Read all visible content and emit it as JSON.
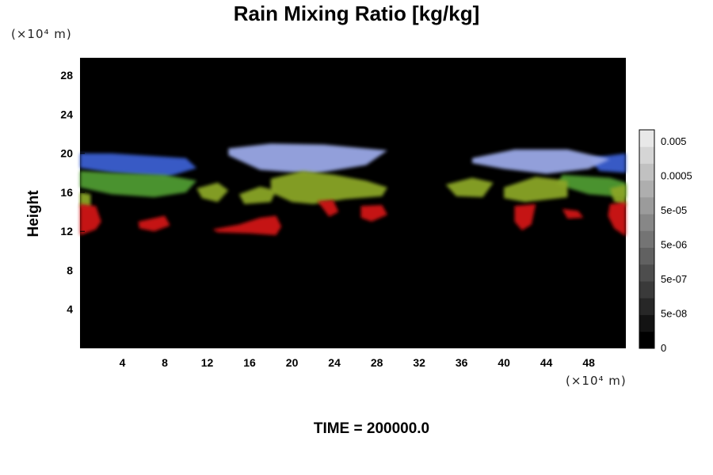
{
  "chart_data": {
    "type": "heatmap",
    "title": "Rain Mixing Ratio [kg/kg]",
    "ylabel": "Height",
    "xlabel": "",
    "x_unit": "(×10⁴ m)",
    "y_unit": "(×10⁴ m)",
    "xlim": [
      0,
      51.5
    ],
    "ylim": [
      0,
      29.8
    ],
    "x_ticks": [
      4,
      8,
      12,
      16,
      20,
      24,
      28,
      32,
      36,
      40,
      44,
      48
    ],
    "y_ticks": [
      4,
      8,
      12,
      16,
      20,
      24,
      28
    ],
    "colorbar": {
      "labels": [
        "0.005",
        "0.0005",
        "5e-05",
        "5e-06",
        "5e-07",
        "5e-08",
        "0"
      ],
      "levels": 13
    },
    "regions": [
      {
        "level": "blue",
        "color": "#3a5fd0",
        "shape": [
          [
            0,
            20
          ],
          [
            3,
            20
          ],
          [
            10,
            19.5
          ],
          [
            11,
            18.5
          ],
          [
            8,
            17.5
          ],
          [
            3,
            18
          ],
          [
            0,
            18.5
          ]
        ]
      },
      {
        "level": "blue",
        "color": "#3a5fd0",
        "shape": [
          [
            48,
            19.5
          ],
          [
            51.5,
            20
          ],
          [
            51.5,
            18
          ],
          [
            49,
            18.2
          ]
        ]
      },
      {
        "level": "light",
        "color": "#9aa8e6",
        "shape": [
          [
            14,
            20.5
          ],
          [
            18,
            21
          ],
          [
            23,
            20.9
          ],
          [
            29,
            20.3
          ],
          [
            27,
            18.8
          ],
          [
            22,
            17.9
          ],
          [
            17,
            18.3
          ],
          [
            14,
            19.8
          ]
        ]
      },
      {
        "level": "light",
        "color": "#9aa8e6",
        "shape": [
          [
            37,
            19.5
          ],
          [
            41,
            20.4
          ],
          [
            46,
            20.4
          ],
          [
            50,
            19.4
          ],
          [
            48,
            18.4
          ],
          [
            44,
            17.9
          ],
          [
            40,
            18.4
          ],
          [
            37,
            19
          ]
        ]
      },
      {
        "level": "green",
        "color": "#4f9a30",
        "shape": [
          [
            0,
            18.2
          ],
          [
            3,
            18
          ],
          [
            8,
            17.8
          ],
          [
            11,
            17.2
          ],
          [
            10,
            16
          ],
          [
            7,
            15.5
          ],
          [
            3,
            15.8
          ],
          [
            0,
            16.5
          ]
        ]
      },
      {
        "level": "green",
        "color": "#4f9a30",
        "shape": [
          [
            45.5,
            17.8
          ],
          [
            50,
            17.5
          ],
          [
            51.5,
            17
          ],
          [
            51.5,
            15.5
          ],
          [
            48,
            15.8
          ],
          [
            45,
            16.8
          ]
        ]
      },
      {
        "level": "yellow",
        "color": "#8aa528",
        "shape": [
          [
            0,
            16
          ],
          [
            1,
            15.8
          ],
          [
            1,
            14.4
          ],
          [
            0,
            14.6
          ]
        ]
      },
      {
        "level": "yellow",
        "color": "#8aa528",
        "shape": [
          [
            11,
            16.4
          ],
          [
            13,
            17
          ],
          [
            14,
            16.2
          ],
          [
            13,
            15
          ],
          [
            11.5,
            15.4
          ]
        ]
      },
      {
        "level": "yellow",
        "color": "#8aa528",
        "shape": [
          [
            15,
            15.8
          ],
          [
            17,
            16.6
          ],
          [
            18.5,
            16.2
          ],
          [
            18,
            15
          ],
          [
            15.5,
            14.8
          ]
        ]
      },
      {
        "level": "yellow",
        "color": "#8aa528",
        "shape": [
          [
            18,
            17.4
          ],
          [
            21,
            18.2
          ],
          [
            24,
            17.8
          ],
          [
            27,
            17.2
          ],
          [
            29,
            16.5
          ],
          [
            28.5,
            15.6
          ],
          [
            25,
            15.3
          ],
          [
            22,
            14.8
          ],
          [
            20,
            15
          ],
          [
            18,
            16
          ]
        ]
      },
      {
        "level": "yellow",
        "color": "#8aa528",
        "shape": [
          [
            34.5,
            16.8
          ],
          [
            37,
            17.5
          ],
          [
            39,
            17
          ],
          [
            38,
            15.5
          ],
          [
            35.5,
            15.6
          ]
        ]
      },
      {
        "level": "yellow",
        "color": "#8aa528",
        "shape": [
          [
            40,
            16.5
          ],
          [
            43,
            17.6
          ],
          [
            46,
            17.2
          ],
          [
            46,
            15.5
          ],
          [
            42,
            15
          ],
          [
            40,
            15.4
          ]
        ]
      },
      {
        "level": "yellow",
        "color": "#8aa528",
        "shape": [
          [
            50,
            16.4
          ],
          [
            51.5,
            16.8
          ],
          [
            51.5,
            14.6
          ],
          [
            50.4,
            15
          ]
        ]
      },
      {
        "level": "red",
        "color": "#d01818",
        "shape": [
          [
            0,
            14.8
          ],
          [
            1.5,
            14.6
          ],
          [
            2,
            13
          ],
          [
            1.5,
            12.2
          ],
          [
            0,
            11.6
          ]
        ]
      },
      {
        "level": "red",
        "color": "#d01818",
        "shape": [
          [
            5.5,
            13
          ],
          [
            8,
            13.6
          ],
          [
            8.5,
            12.6
          ],
          [
            7,
            12
          ],
          [
            5.6,
            12.3
          ]
        ]
      },
      {
        "level": "red",
        "color": "#d01818",
        "shape": [
          [
            12.5,
            12.2
          ],
          [
            15,
            12.7
          ],
          [
            17,
            13.4
          ],
          [
            18.5,
            13.6
          ],
          [
            19,
            12.5
          ],
          [
            18.5,
            11.6
          ],
          [
            16,
            11.8
          ],
          [
            13,
            11.9
          ]
        ]
      },
      {
        "level": "red",
        "color": "#d01818",
        "shape": [
          [
            26.5,
            14.6
          ],
          [
            28.5,
            14.7
          ],
          [
            29,
            13.7
          ],
          [
            27.5,
            13
          ],
          [
            26.5,
            13.4
          ]
        ]
      },
      {
        "level": "red",
        "color": "#d01818",
        "shape": [
          [
            22.4,
            15.1
          ],
          [
            23.9,
            15.2
          ],
          [
            24.4,
            14
          ],
          [
            23.5,
            13.5
          ]
        ]
      },
      {
        "level": "red",
        "color": "#d01818",
        "shape": [
          [
            41,
            14.6
          ],
          [
            43,
            14.8
          ],
          [
            42.6,
            12.7
          ],
          [
            41.7,
            12.1
          ],
          [
            41,
            13
          ]
        ]
      },
      {
        "level": "red",
        "color": "#d01818",
        "shape": [
          [
            45.5,
            14.3
          ],
          [
            47,
            14.1
          ],
          [
            47.5,
            13.4
          ],
          [
            46,
            13.3
          ]
        ]
      },
      {
        "level": "red",
        "color": "#d01818",
        "shape": [
          [
            50,
            14.8
          ],
          [
            51.5,
            15
          ],
          [
            51.5,
            11.5
          ],
          [
            50.4,
            12.3
          ],
          [
            49.8,
            13.6
          ]
        ]
      }
    ]
  },
  "time_label": "TIME = 200000.0"
}
